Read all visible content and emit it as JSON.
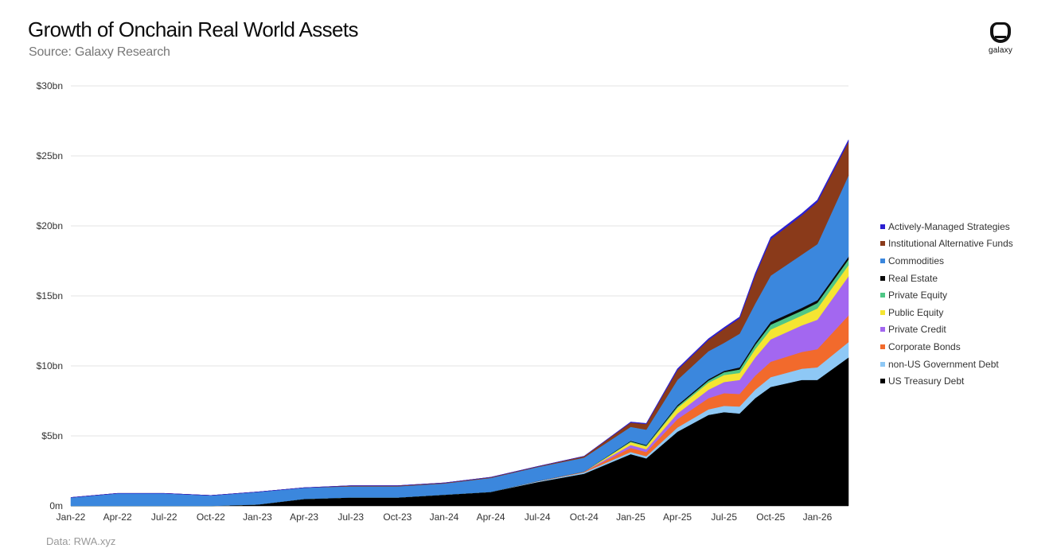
{
  "header": {
    "title": "Growth of Onchain Real World Assets",
    "subtitle": "Source: Galaxy Research"
  },
  "logo": {
    "text": "galaxy"
  },
  "footer": {
    "data_source": "Data: RWA.xyz"
  },
  "chart_data": {
    "type": "area",
    "stacked": true,
    "title": "Growth of Onchain Real World Assets",
    "subtitle": "Source: Galaxy Research",
    "xlabel": "",
    "ylabel": "",
    "x_tick_labels": [
      "Jan-22",
      "Apr-22",
      "Jul-22",
      "Oct-22",
      "Jan-23",
      "Apr-23",
      "Jul-23",
      "Oct-23",
      "Jan-24",
      "Apr-24",
      "Jul-24",
      "Oct-24",
      "Jan-25",
      "Apr-25",
      "Jul-25",
      "Oct-25",
      "Jan-26"
    ],
    "y_tick_labels": [
      "0m",
      "$5bn",
      "$10bn",
      "$15bn",
      "$20bn",
      "$25bn",
      "$30bn"
    ],
    "y_unit": "$bn",
    "ylim": [
      0,
      30
    ],
    "grid": "horizontal",
    "legend_position": "right",
    "x": [
      "2022-01",
      "2022-04",
      "2022-07",
      "2022-10",
      "2023-01",
      "2023-04",
      "2023-07",
      "2023-10",
      "2024-01",
      "2024-04",
      "2024-07",
      "2024-10",
      "2025-01",
      "2025-02",
      "2025-04",
      "2025-06",
      "2025-07",
      "2025-08",
      "2025-09",
      "2025-10",
      "2025-12",
      "2026-01",
      "2026-03"
    ],
    "series": [
      {
        "name": "US Treasury Debt",
        "color": "#000000",
        "values": [
          0.0,
          0.0,
          0.0,
          0.0,
          0.1,
          0.5,
          0.6,
          0.6,
          0.8,
          1.0,
          1.7,
          2.3,
          3.7,
          3.4,
          5.3,
          6.5,
          6.7,
          6.6,
          7.7,
          8.5,
          9.0,
          9.0,
          10.6
        ]
      },
      {
        "name": "non-US Government Debt",
        "color": "#8ec8f5",
        "values": [
          0.0,
          0.0,
          0.0,
          0.0,
          0.0,
          0.0,
          0.0,
          0.0,
          0.0,
          0.0,
          0.05,
          0.1,
          0.15,
          0.15,
          0.3,
          0.4,
          0.45,
          0.5,
          0.6,
          0.7,
          0.8,
          0.9,
          1.1
        ]
      },
      {
        "name": "Corporate Bonds",
        "color": "#f26a2c",
        "values": [
          0.0,
          0.0,
          0.0,
          0.0,
          0.0,
          0.0,
          0.0,
          0.0,
          0.0,
          0.0,
          0.02,
          0.05,
          0.3,
          0.3,
          0.6,
          0.8,
          0.9,
          0.9,
          1.0,
          1.1,
          1.2,
          1.3,
          1.9
        ]
      },
      {
        "name": "Private Credit",
        "color": "#a367f0",
        "values": [
          0.0,
          0.0,
          0.0,
          0.0,
          0.0,
          0.0,
          0.0,
          0.0,
          0.0,
          0.0,
          0.0,
          0.0,
          0.2,
          0.2,
          0.4,
          0.6,
          0.8,
          1.0,
          1.3,
          1.6,
          1.9,
          2.1,
          2.8
        ]
      },
      {
        "name": "Public Equity",
        "color": "#f5e532",
        "values": [
          0.0,
          0.0,
          0.0,
          0.0,
          0.0,
          0.0,
          0.0,
          0.0,
          0.0,
          0.0,
          0.0,
          0.0,
          0.2,
          0.2,
          0.4,
          0.5,
          0.5,
          0.5,
          0.6,
          0.7,
          0.7,
          0.8,
          0.8
        ]
      },
      {
        "name": "Private Equity",
        "color": "#4fc786",
        "values": [
          0.0,
          0.0,
          0.0,
          0.0,
          0.0,
          0.0,
          0.0,
          0.0,
          0.0,
          0.0,
          0.0,
          0.0,
          0.05,
          0.05,
          0.1,
          0.15,
          0.2,
          0.25,
          0.3,
          0.35,
          0.35,
          0.4,
          0.4
        ]
      },
      {
        "name": "Real Estate",
        "color": "#0a0a0a",
        "values": [
          0.0,
          0.0,
          0.0,
          0.0,
          0.0,
          0.0,
          0.0,
          0.0,
          0.0,
          0.0,
          0.0,
          0.0,
          0.05,
          0.05,
          0.1,
          0.1,
          0.1,
          0.15,
          0.15,
          0.2,
          0.2,
          0.2,
          0.2
        ]
      },
      {
        "name": "Commodities",
        "color": "#3b87dd",
        "values": [
          0.6,
          0.9,
          0.9,
          0.75,
          0.9,
          0.8,
          0.8,
          0.8,
          0.8,
          1.0,
          1.0,
          1.0,
          1.0,
          1.1,
          1.8,
          2.0,
          2.0,
          2.4,
          2.8,
          3.3,
          3.8,
          4.0,
          5.8
        ]
      },
      {
        "name": "Institutional Alternative Funds",
        "color": "#8a3a1a",
        "values": [
          0.0,
          0.0,
          0.0,
          0.0,
          0.0,
          0.0,
          0.05,
          0.05,
          0.05,
          0.05,
          0.05,
          0.1,
          0.3,
          0.4,
          0.7,
          0.8,
          1.0,
          1.1,
          2.0,
          2.6,
          2.8,
          3.0,
          2.4
        ]
      },
      {
        "name": "Actively-Managed Strategies",
        "color": "#2b1fd1",
        "values": [
          0.0,
          0.0,
          0.0,
          0.0,
          0.0,
          0.0,
          0.0,
          0.0,
          0.0,
          0.0,
          0.0,
          0.0,
          0.05,
          0.05,
          0.1,
          0.1,
          0.1,
          0.1,
          0.15,
          0.15,
          0.15,
          0.15,
          0.15
        ]
      }
    ]
  }
}
